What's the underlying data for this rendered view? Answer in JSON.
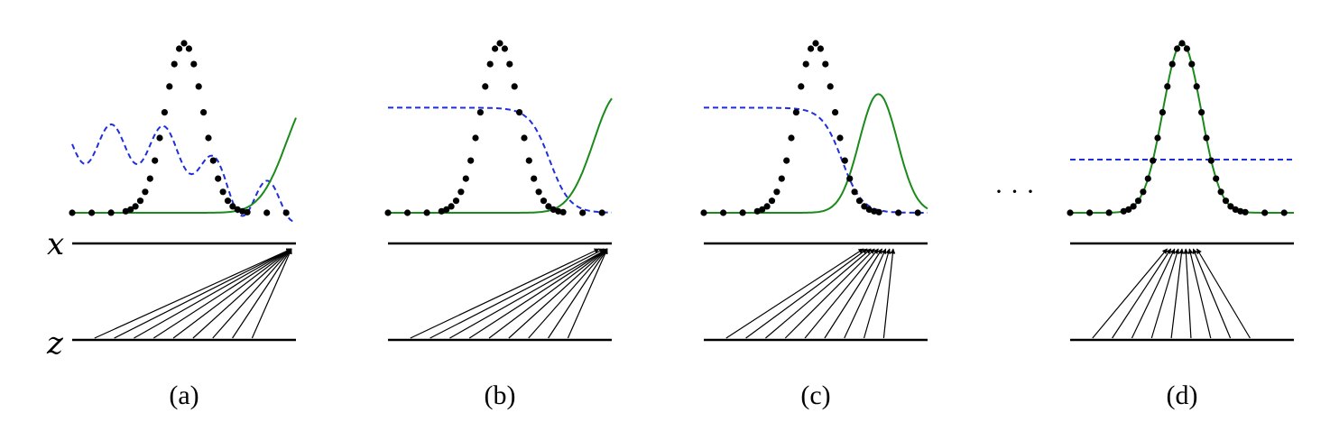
{
  "figure": {
    "axis_labels": {
      "top": "x",
      "bottom": "z"
    },
    "ellipsis": "· · ·",
    "colors": {
      "data": "#000000",
      "generator": "#1a8a1a",
      "discriminator": "#1f2fdc",
      "axis": "#000000"
    },
    "panels": [
      {
        "id": "a",
        "caption": "(a)",
        "discriminator": "oscillating",
        "generator_mean_offset": 0.58,
        "generator_sigma": 0.12
      },
      {
        "id": "b",
        "caption": "(b)",
        "discriminator": "sigmoid",
        "generator_mean_offset": 0.53,
        "generator_sigma": 0.11
      },
      {
        "id": "c",
        "caption": "(c)",
        "discriminator": "sigmoid",
        "generator_mean_offset": 0.28,
        "generator_sigma": 0.085
      },
      {
        "id": "d",
        "caption": "(d)",
        "discriminator": "flat",
        "generator_mean_offset": 0.0,
        "generator_sigma": 0.085
      }
    ]
  }
}
